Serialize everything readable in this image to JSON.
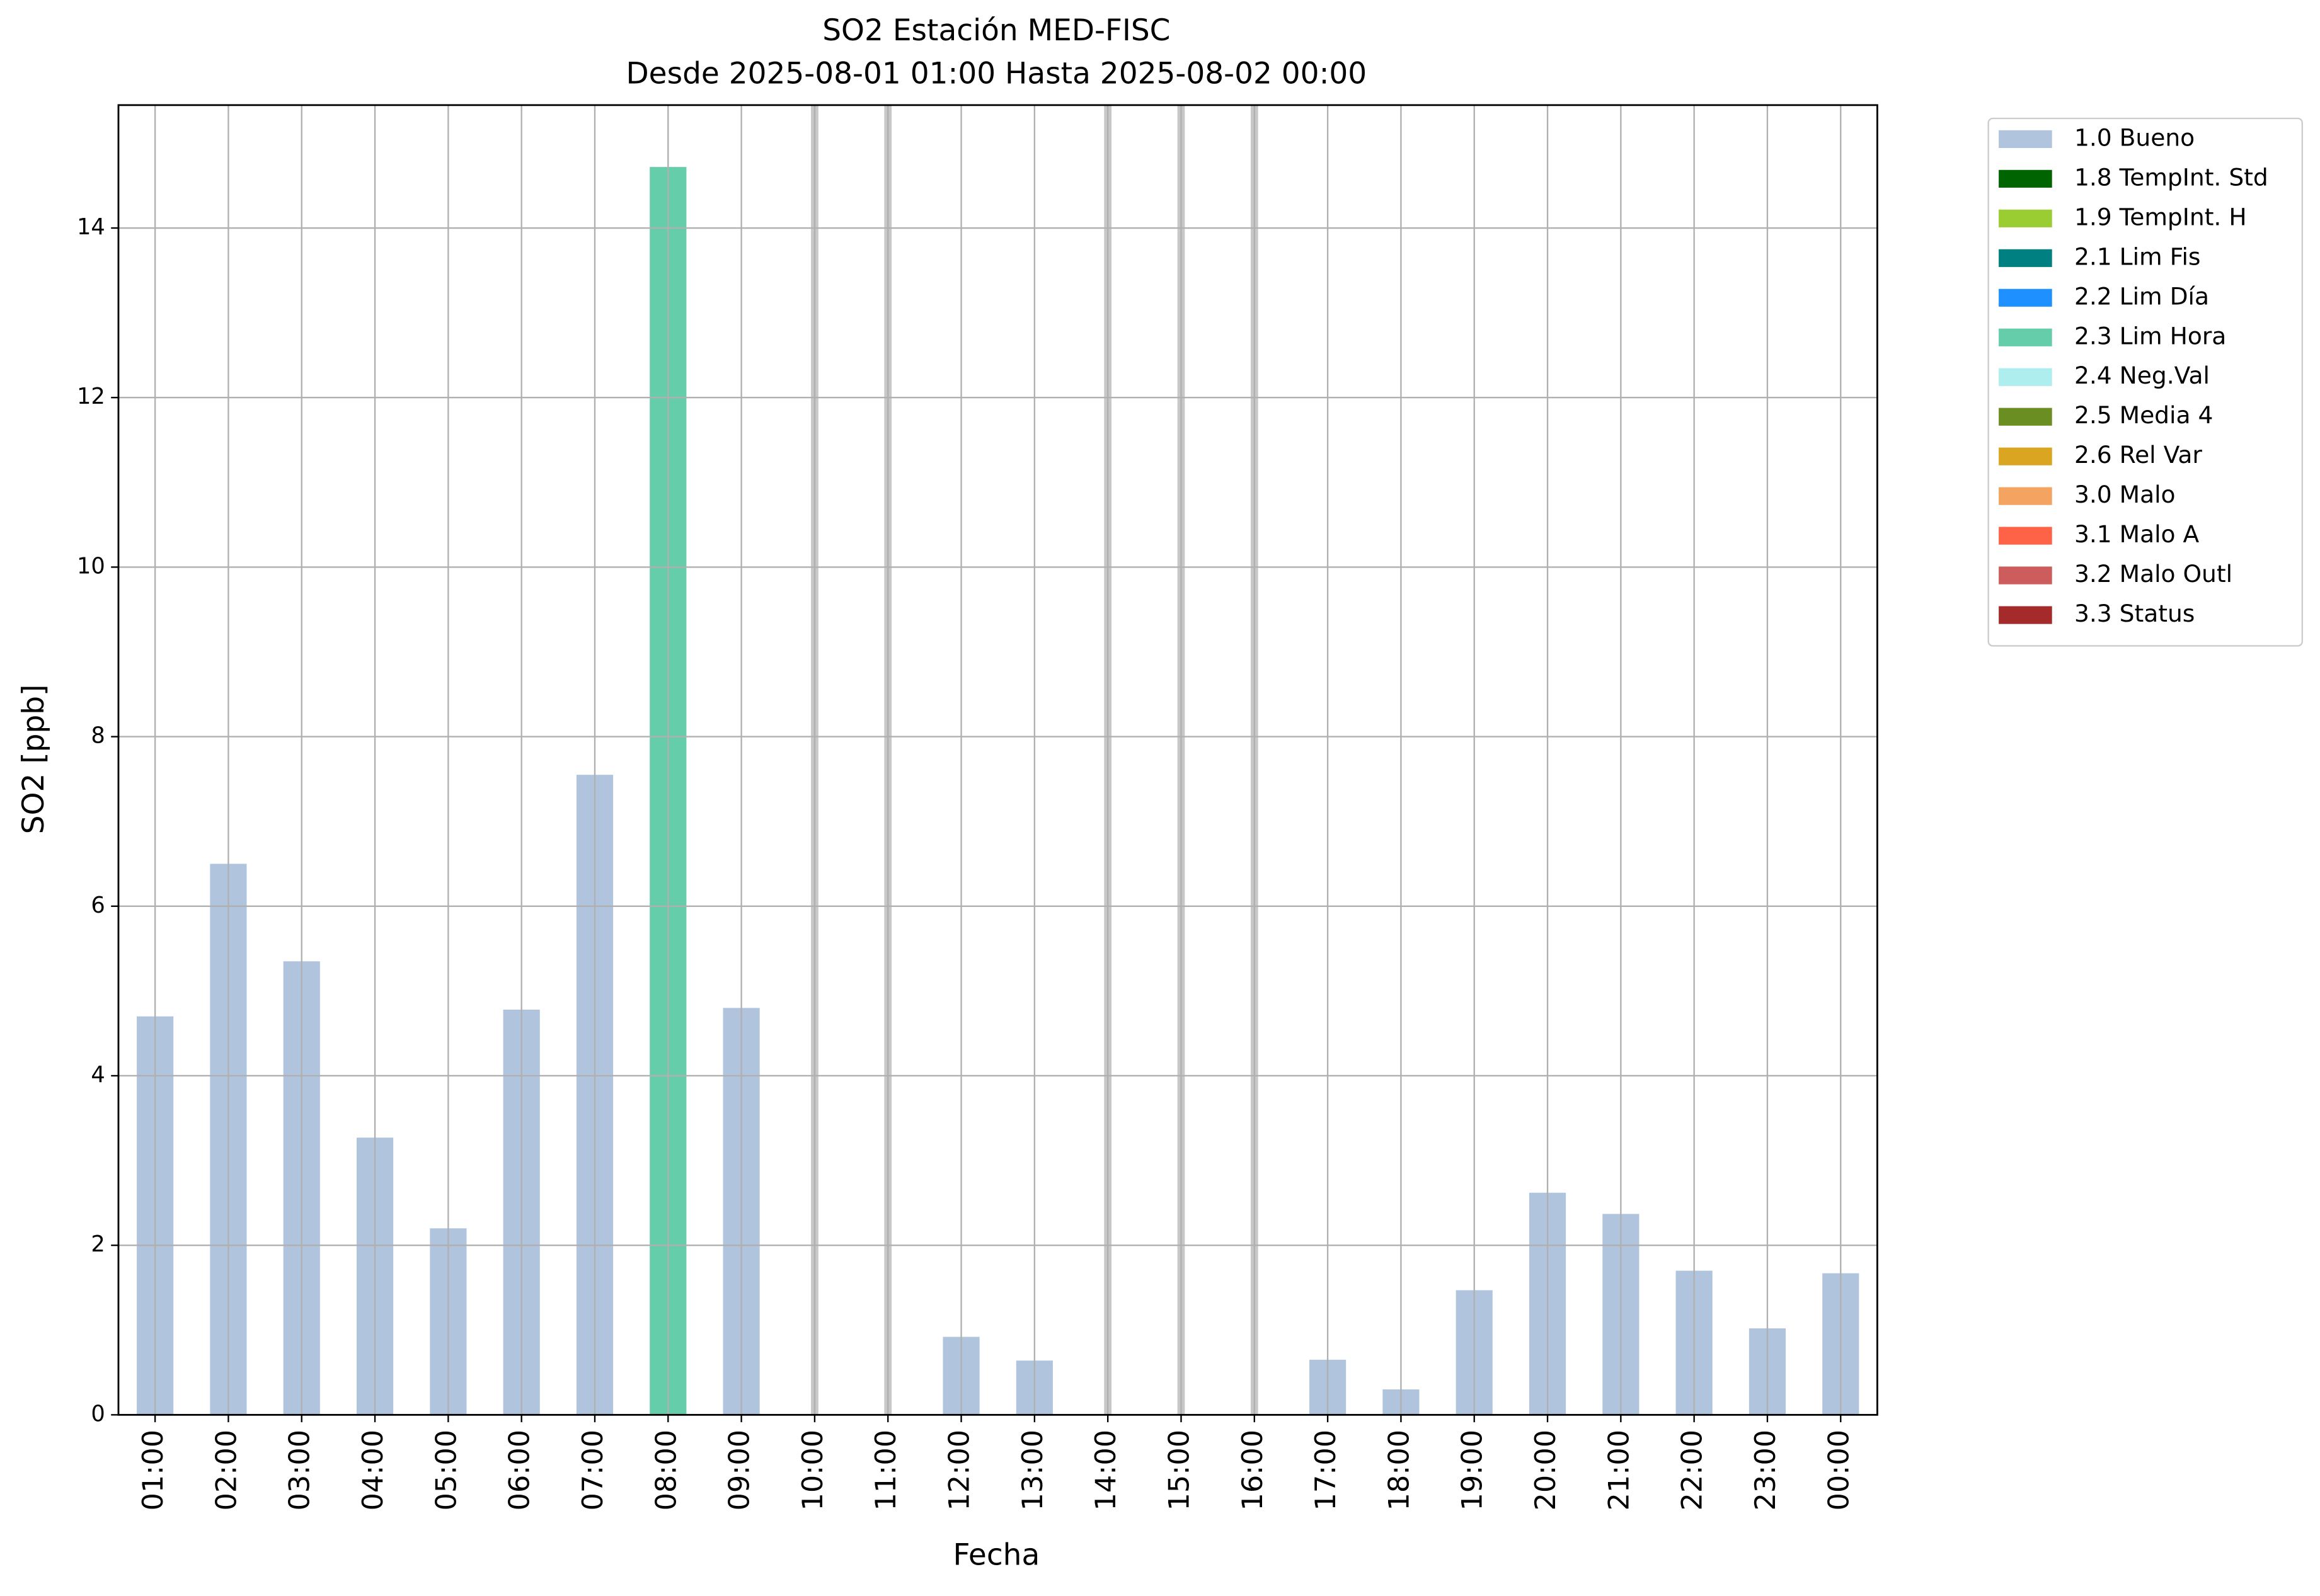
{
  "chart_data": {
    "type": "bar",
    "stacked": true,
    "title": "SO2 Estación MED-FISC",
    "subtitle": "Desde 2025-08-01 01:00 Hasta 2025-08-02 00:00",
    "x_label": "Fecha",
    "y_label": "SO2 [ppb]",
    "categories": [
      "01:00",
      "02:00",
      "03:00",
      "04:00",
      "05:00",
      "06:00",
      "07:00",
      "08:00",
      "09:00",
      "10:00",
      "11:00",
      "12:00",
      "13:00",
      "14:00",
      "15:00",
      "16:00",
      "17:00",
      "18:00",
      "19:00",
      "20:00",
      "21:00",
      "22:00",
      "23:00",
      "00:00"
    ],
    "series": [
      {
        "name": "1.0 Bueno",
        "color": "#b0c4de",
        "values": [
          4.7,
          6.5,
          5.35,
          3.27,
          2.2,
          4.78,
          7.55,
          null,
          4.8,
          null,
          null,
          0.92,
          0.64,
          null,
          null,
          null,
          0.65,
          0.3,
          1.47,
          2.62,
          2.37,
          1.7,
          1.02,
          1.67
        ]
      },
      {
        "name": "1.8 TempInt. Std",
        "color": "#006400",
        "values": [
          null,
          null,
          null,
          null,
          null,
          null,
          null,
          null,
          null,
          null,
          null,
          null,
          null,
          null,
          null,
          null,
          null,
          null,
          null,
          null,
          null,
          null,
          null,
          null
        ]
      },
      {
        "name": "1.9 TempInt. H",
        "color": "#9acd32",
        "values": [
          null,
          null,
          null,
          null,
          null,
          null,
          null,
          null,
          null,
          null,
          null,
          null,
          null,
          null,
          null,
          null,
          null,
          null,
          null,
          null,
          null,
          null,
          null,
          null
        ]
      },
      {
        "name": "2.1 Lim Fis",
        "color": "#008080",
        "values": [
          null,
          null,
          null,
          null,
          null,
          null,
          null,
          null,
          null,
          null,
          null,
          null,
          null,
          null,
          null,
          null,
          null,
          null,
          null,
          null,
          null,
          null,
          null,
          null
        ]
      },
      {
        "name": "2.2 Lim Día",
        "color": "#1e90ff",
        "values": [
          null,
          null,
          null,
          null,
          null,
          null,
          null,
          null,
          null,
          null,
          null,
          null,
          null,
          null,
          null,
          null,
          null,
          null,
          null,
          null,
          null,
          null,
          null,
          null
        ]
      },
      {
        "name": "2.3 Lim Hora",
        "color": "#66cdaa",
        "values": [
          null,
          null,
          null,
          null,
          null,
          null,
          null,
          14.72,
          null,
          null,
          null,
          null,
          null,
          null,
          null,
          null,
          null,
          null,
          null,
          null,
          null,
          null,
          null,
          null
        ]
      },
      {
        "name": "2.4 Neg.Val",
        "color": "#afeeee",
        "values": [
          null,
          null,
          null,
          null,
          null,
          null,
          null,
          null,
          null,
          null,
          null,
          null,
          null,
          null,
          null,
          null,
          null,
          null,
          null,
          null,
          null,
          null,
          null,
          null
        ]
      },
      {
        "name": "2.5 Media 4",
        "color": "#6b8e23",
        "values": [
          null,
          null,
          null,
          null,
          null,
          null,
          null,
          null,
          null,
          null,
          null,
          null,
          null,
          null,
          null,
          null,
          null,
          null,
          null,
          null,
          null,
          null,
          null,
          null
        ]
      },
      {
        "name": "2.6 Rel Var",
        "color": "#daa520",
        "values": [
          null,
          null,
          null,
          null,
          null,
          null,
          null,
          null,
          null,
          null,
          null,
          null,
          null,
          null,
          null,
          null,
          null,
          null,
          null,
          null,
          null,
          null,
          null,
          null
        ]
      },
      {
        "name": "3.0 Malo",
        "color": "#f4a460",
        "values": [
          null,
          null,
          null,
          null,
          null,
          null,
          null,
          null,
          null,
          null,
          null,
          null,
          null,
          null,
          null,
          null,
          null,
          null,
          null,
          null,
          null,
          null,
          null,
          null
        ]
      },
      {
        "name": "3.1 Malo A",
        "color": "#ff6347",
        "values": [
          null,
          null,
          null,
          null,
          null,
          null,
          null,
          null,
          null,
          null,
          null,
          null,
          null,
          null,
          null,
          null,
          null,
          null,
          null,
          null,
          null,
          null,
          null,
          null
        ]
      },
      {
        "name": "3.2 Malo Outl",
        "color": "#cd5c5c",
        "values": [
          null,
          null,
          null,
          null,
          null,
          null,
          null,
          null,
          null,
          null,
          null,
          null,
          null,
          null,
          null,
          null,
          null,
          null,
          null,
          null,
          null,
          null,
          null,
          null
        ]
      },
      {
        "name": "3.3 Status",
        "color": "#a52a2a",
        "values": [
          null,
          null,
          null,
          null,
          null,
          null,
          null,
          null,
          null,
          null,
          null,
          null,
          null,
          null,
          null,
          null,
          null,
          null,
          null,
          null,
          null,
          null,
          null,
          null
        ]
      }
    ],
    "ylim": [
      0,
      15.45
    ],
    "yticks": [
      0,
      2,
      4,
      6,
      8,
      10,
      12,
      14
    ],
    "grid": true,
    "legend": "outside-upper-right"
  }
}
